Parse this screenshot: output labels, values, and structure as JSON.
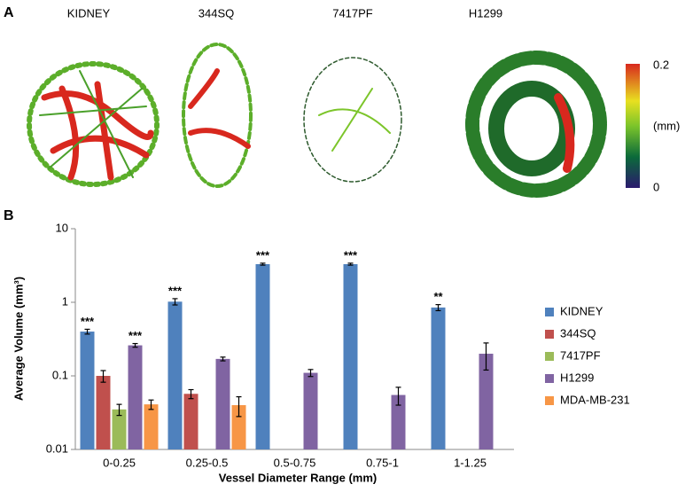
{
  "panel_a": {
    "label": "A",
    "images": [
      "KIDNEY",
      "344SQ",
      "7417PF",
      "H1299"
    ],
    "colorbar": {
      "max": "0.2",
      "unit": "(mm)",
      "min": "0"
    }
  },
  "chart_data": {
    "type": "bar",
    "panel_label": "B",
    "x_label": "Vessel Diameter Range (mm)",
    "y_label": "Average Volume (mm³)",
    "categories": [
      "0-0.25",
      "0.25-0.5",
      "0.5-0.75",
      "0.75-1",
      "1-1.25"
    ],
    "log_y": true,
    "ylim": [
      0.01,
      10
    ],
    "yticks": [
      0.01,
      0.1,
      1,
      10
    ],
    "grid": false,
    "legend": "right",
    "series": [
      {
        "name": "KIDNEY",
        "color": "#4f81bd",
        "values": [
          0.4,
          1.02,
          3.3,
          3.3,
          0.85
        ],
        "errors": [
          0.03,
          0.1,
          0.1,
          0.1,
          0.08
        ],
        "significance": [
          "***",
          "***",
          "***",
          "***",
          "**"
        ]
      },
      {
        "name": "344SQ",
        "color": "#c0504d",
        "values": [
          0.1,
          0.057,
          null,
          null,
          null
        ],
        "errors": [
          0.018,
          0.008,
          null,
          null,
          null
        ]
      },
      {
        "name": "7417PF",
        "color": "#9bbb59",
        "values": [
          0.035,
          null,
          null,
          null,
          null
        ],
        "errors": [
          0.006,
          null,
          null,
          null,
          null
        ]
      },
      {
        "name": "H1299",
        "color": "#8064a2",
        "values": [
          0.26,
          0.17,
          0.11,
          0.055,
          0.2
        ],
        "errors": [
          0.015,
          0.01,
          0.012,
          0.015,
          0.08
        ],
        "significance": [
          "***",
          null,
          null,
          null,
          null
        ]
      },
      {
        "name": "MDA-MB-231",
        "color": "#f79646",
        "values": [
          0.041,
          0.04,
          null,
          null,
          null
        ],
        "errors": [
          0.006,
          0.012,
          null,
          null,
          null
        ]
      }
    ]
  }
}
